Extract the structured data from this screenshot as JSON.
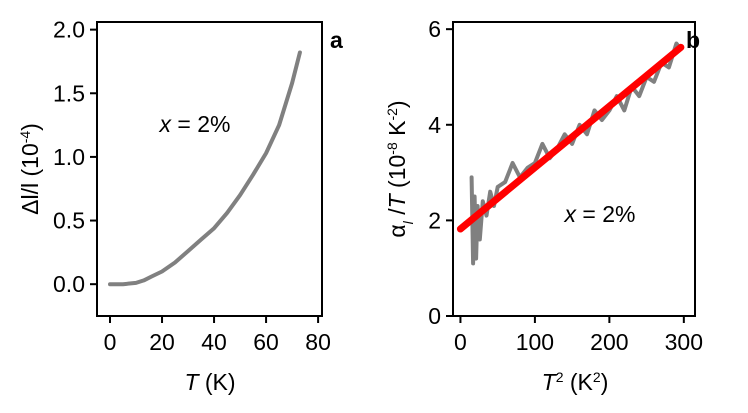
{
  "chart_data": [
    {
      "type": "line",
      "panel": "a",
      "xlabel": [
        {
          "text": "T",
          "style": "italic"
        },
        {
          "text": " (K)",
          "style": "normal"
        }
      ],
      "ylabel": [
        {
          "text": "Δl/l (10",
          "style": "normal"
        },
        {
          "text": "-4",
          "style": "sup"
        },
        {
          "text": ")",
          "style": "normal"
        }
      ],
      "annotation": [
        {
          "text": "x",
          "style": "italic"
        },
        {
          "text": " = 2%",
          "style": "normal"
        }
      ],
      "x": [
        0,
        5,
        10,
        13,
        16,
        20,
        25,
        30,
        35,
        40,
        45,
        50,
        55,
        60,
        65,
        70,
        73
      ],
      "series": [
        {
          "color": "#808080",
          "values": [
            0,
            0,
            0.01,
            0.03,
            0.06,
            0.1,
            0.17,
            0.26,
            0.35,
            0.44,
            0.56,
            0.7,
            0.86,
            1.03,
            1.25,
            1.58,
            1.82
          ]
        }
      ],
      "xlim": [
        -5,
        81.5
      ],
      "ylim": [
        -0.25,
        2.06
      ],
      "xticks": [
        0,
        20,
        40,
        60,
        80
      ],
      "yticks": [
        {
          "value": 0,
          "label": "0.0"
        },
        {
          "value": 0.5,
          "label": "0.5"
        },
        {
          "value": 1,
          "label": "1.0"
        },
        {
          "value": 1.5,
          "label": "1.5"
        },
        {
          "value": 2,
          "label": "2.0"
        }
      ]
    },
    {
      "type": "line",
      "panel": "b",
      "xlabel": [
        {
          "text": "T",
          "style": "italic"
        },
        {
          "text": "2",
          "style": "sup"
        },
        {
          "text": " (K",
          "style": "normal"
        },
        {
          "text": "2",
          "style": "sup"
        },
        {
          "text": ")",
          "style": "normal"
        }
      ],
      "ylabel": [
        {
          "text": "α",
          "style": "normal"
        },
        {
          "text": "l",
          "style": "sub"
        },
        {
          "text": " /",
          "style": "normal"
        },
        {
          "text": "T",
          "style": "italic"
        },
        {
          "text": " (10",
          "style": "normal"
        },
        {
          "text": "-8",
          "style": "sup"
        },
        {
          "text": " K",
          "style": "normal"
        },
        {
          "text": "-2",
          "style": "sup"
        },
        {
          "text": ")",
          "style": "normal"
        }
      ],
      "annotation": [
        {
          "text": "x",
          "style": "italic"
        },
        {
          "text": " = 2%",
          "style": "normal"
        }
      ],
      "series": [
        {
          "color": "#808080",
          "x": [
            15,
            17,
            19,
            21,
            23,
            26,
            30,
            35,
            40,
            45,
            50,
            60,
            70,
            80,
            90,
            100,
            110,
            120,
            130,
            140,
            150,
            160,
            170,
            180,
            190,
            200,
            210,
            220,
            230,
            240,
            250,
            260,
            270,
            280,
            290,
            295
          ],
          "values": [
            2.9,
            1.1,
            2.5,
            1.2,
            2.3,
            1.6,
            2.4,
            2.1,
            2.6,
            2.3,
            2.7,
            2.8,
            3.2,
            2.9,
            3.1,
            3.2,
            3.6,
            3.3,
            3.5,
            3.8,
            3.6,
            4.0,
            3.8,
            4.3,
            4.1,
            4.3,
            4.6,
            4.3,
            4.8,
            4.6,
            5.0,
            4.9,
            5.3,
            5.2,
            5.7,
            5.6
          ]
        },
        {
          "color": "#ff0000",
          "x": [
            0,
            296
          ],
          "values": [
            1.82,
            5.62
          ]
        }
      ],
      "xlim": [
        -10,
        315
      ],
      "ylim": [
        0,
        6.15
      ],
      "xticks": [
        0,
        100,
        200,
        300
      ],
      "yticks": [
        0,
        2,
        4,
        6
      ]
    }
  ]
}
